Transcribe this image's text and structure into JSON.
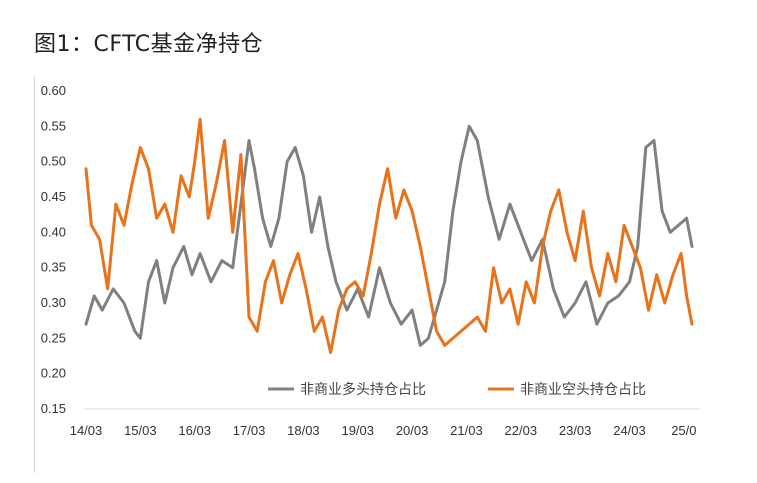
{
  "figure": {
    "title": "图1：CFTC基金净持仓"
  },
  "chart_data": {
    "type": "line",
    "ylim": [
      0.15,
      0.6
    ],
    "yticks": [
      "0.60",
      "0.55",
      "0.50",
      "0.45",
      "0.40",
      "0.35",
      "0.30",
      "0.25",
      "0.20",
      "0.15"
    ],
    "xticks": [
      "14/03",
      "15/03",
      "16/03",
      "17/03",
      "18/03",
      "19/03",
      "20/03",
      "21/03",
      "22/03",
      "23/03",
      "24/03",
      "25/0"
    ],
    "grid": false,
    "legend_position": "bottom-right",
    "series": [
      {
        "name": "非商业多头持仓占比",
        "color": "#808080",
        "x": [
          14.0,
          14.15,
          14.3,
          14.5,
          14.7,
          14.9,
          15.0,
          15.15,
          15.3,
          15.45,
          15.6,
          15.8,
          15.95,
          16.1,
          16.3,
          16.5,
          16.7,
          16.85,
          17.0,
          17.1,
          17.25,
          17.4,
          17.55,
          17.7,
          17.85,
          18.0,
          18.15,
          18.3,
          18.45,
          18.6,
          18.8,
          19.0,
          19.2,
          19.4,
          19.6,
          19.8,
          20.0,
          20.15,
          20.3,
          20.45,
          20.6,
          20.75,
          20.9,
          21.05,
          21.2,
          21.4,
          21.6,
          21.8,
          22.0,
          22.2,
          22.4,
          22.6,
          22.8,
          23.0,
          23.2,
          23.4,
          23.6,
          23.8,
          24.0,
          24.15,
          24.3,
          24.45,
          24.6,
          24.75,
          24.9,
          25.05,
          25.15
        ],
        "values": [
          0.27,
          0.31,
          0.29,
          0.32,
          0.3,
          0.26,
          0.25,
          0.33,
          0.36,
          0.3,
          0.35,
          0.38,
          0.34,
          0.37,
          0.33,
          0.36,
          0.35,
          0.44,
          0.53,
          0.49,
          0.42,
          0.38,
          0.42,
          0.5,
          0.52,
          0.48,
          0.4,
          0.45,
          0.38,
          0.33,
          0.29,
          0.32,
          0.28,
          0.35,
          0.3,
          0.27,
          0.29,
          0.24,
          0.25,
          0.29,
          0.33,
          0.43,
          0.5,
          0.55,
          0.53,
          0.45,
          0.39,
          0.44,
          0.4,
          0.36,
          0.39,
          0.32,
          0.28,
          0.3,
          0.33,
          0.27,
          0.3,
          0.31,
          0.33,
          0.38,
          0.52,
          0.53,
          0.43,
          0.4,
          0.41,
          0.42,
          0.38
        ]
      },
      {
        "name": "非商业空头持仓占比",
        "color": "#E8731A",
        "x": [
          14.0,
          14.1,
          14.25,
          14.4,
          14.55,
          14.7,
          14.85,
          15.0,
          15.15,
          15.3,
          15.45,
          15.6,
          15.75,
          15.9,
          16.0,
          16.1,
          16.25,
          16.4,
          16.55,
          16.7,
          16.85,
          17.0,
          17.15,
          17.3,
          17.45,
          17.6,
          17.75,
          17.9,
          18.05,
          18.2,
          18.35,
          18.5,
          18.65,
          18.8,
          18.95,
          19.1,
          19.25,
          19.4,
          19.55,
          19.7,
          19.85,
          20.0,
          20.15,
          20.3,
          20.45,
          20.6,
          20.75,
          20.9,
          21.05,
          21.2,
          21.35,
          21.5,
          21.65,
          21.8,
          21.95,
          22.1,
          22.25,
          22.4,
          22.55,
          22.7,
          22.85,
          23.0,
          23.15,
          23.3,
          23.45,
          23.6,
          23.75,
          23.9,
          24.05,
          24.2,
          24.35,
          24.5,
          24.65,
          24.8,
          24.95,
          25.05,
          25.15
        ],
        "values": [
          0.49,
          0.41,
          0.39,
          0.32,
          0.44,
          0.41,
          0.47,
          0.52,
          0.49,
          0.42,
          0.44,
          0.4,
          0.48,
          0.45,
          0.5,
          0.56,
          0.42,
          0.47,
          0.53,
          0.4,
          0.51,
          0.28,
          0.26,
          0.33,
          0.36,
          0.3,
          0.34,
          0.37,
          0.32,
          0.26,
          0.28,
          0.23,
          0.29,
          0.32,
          0.33,
          0.31,
          0.37,
          0.44,
          0.49,
          0.42,
          0.46,
          0.43,
          0.38,
          0.32,
          0.26,
          0.24,
          0.25,
          0.26,
          0.27,
          0.28,
          0.26,
          0.35,
          0.3,
          0.32,
          0.27,
          0.33,
          0.3,
          0.38,
          0.43,
          0.46,
          0.4,
          0.36,
          0.43,
          0.35,
          0.31,
          0.37,
          0.33,
          0.41,
          0.38,
          0.35,
          0.29,
          0.34,
          0.3,
          0.34,
          0.37,
          0.31,
          0.27
        ]
      }
    ]
  }
}
